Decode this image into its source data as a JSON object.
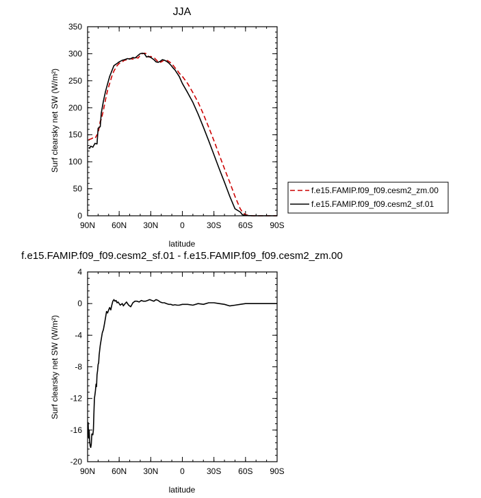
{
  "chart_data": [
    {
      "type": "line",
      "title": "JJA",
      "xlabel": "latitude",
      "ylabel": "Surf clearsky net SW (W/m²)",
      "xlim": [
        90,
        -90
      ],
      "ylim": [
        0,
        350
      ],
      "xticks": [
        90,
        60,
        30,
        0,
        -30,
        -60,
        -90
      ],
      "xtick_labels": [
        "90N",
        "60N",
        "30N",
        "0",
        "30S",
        "60S",
        "90S"
      ],
      "yticks": [
        0,
        50,
        100,
        150,
        200,
        250,
        300,
        350
      ],
      "ytick_labels": [
        "0",
        "50",
        "100",
        "150",
        "200",
        "250",
        "300",
        "350"
      ],
      "legend_position": "right",
      "series": [
        {
          "name": "f.e15.FAMIP.f09_f09.cesm2_zm.00",
          "color": "#cc0000",
          "dash": "dashed",
          "x": [
            89,
            87,
            85,
            83,
            81,
            80,
            78,
            77,
            75,
            73,
            71,
            69,
            67,
            65,
            62,
            60,
            57,
            55,
            52,
            50,
            47,
            45,
            42,
            40,
            38,
            36,
            34,
            32,
            30,
            27,
            25,
            23,
            21,
            19,
            17,
            15,
            13,
            11,
            9,
            7,
            5,
            3,
            0,
            -5,
            -10,
            -15,
            -20,
            -25,
            -30,
            -35,
            -40,
            -45,
            -50,
            -55,
            -57,
            -60,
            -62,
            -63,
            -65,
            -66,
            -68,
            -70,
            -75,
            -80,
            -85,
            -90
          ],
          "y": [
            141,
            142,
            144,
            143,
            150,
            152,
            175,
            178,
            195,
            215,
            232,
            245,
            258,
            268,
            278,
            282,
            285,
            288,
            289,
            291,
            290,
            293,
            292,
            297,
            300,
            301,
            300,
            294,
            295,
            293,
            289,
            285,
            284,
            286,
            289,
            288,
            286,
            283,
            279,
            274,
            270,
            264,
            258,
            245,
            228,
            210,
            188,
            164,
            139,
            113,
            87,
            62,
            36,
            13,
            7,
            2,
            1,
            0.5,
            0.3,
            0.2,
            0,
            0,
            0,
            0,
            0,
            0
          ]
        },
        {
          "name": "f.e15.FAMIP.f09_f09.cesm2_sf.01",
          "color": "#000000",
          "dash": "solid",
          "x": [
            89,
            88,
            87,
            85,
            83,
            81,
            80,
            78,
            77,
            75,
            73,
            71,
            69,
            67,
            65,
            62,
            60,
            57,
            55,
            52,
            50,
            47,
            45,
            42,
            40,
            38,
            36,
            34,
            32,
            30,
            27,
            25,
            23,
            21,
            19,
            17,
            15,
            13,
            11,
            9,
            7,
            5,
            3,
            0,
            -5,
            -10,
            -15,
            -20,
            -25,
            -30,
            -35,
            -40,
            -45,
            -50,
            -55,
            -57,
            -60,
            -62,
            -63,
            -65,
            -66,
            -68,
            -70,
            -75,
            -80,
            -85,
            -90
          ],
          "y": [
            126,
            125,
            129,
            127,
            134,
            133,
            162,
            165,
            190,
            212,
            230,
            244,
            258,
            268,
            278,
            282,
            285,
            288,
            289,
            291,
            290,
            293,
            292,
            297,
            300,
            301,
            300,
            294,
            295,
            293,
            289,
            285,
            284,
            286,
            289,
            288,
            286,
            283,
            279,
            274,
            270,
            264,
            258,
            245,
            228,
            210,
            188,
            164,
            139,
            113,
            87,
            62,
            36,
            13,
            7,
            2,
            1,
            0.5,
            0.3,
            0.2,
            0,
            0,
            0,
            0,
            0,
            0,
            0
          ]
        }
      ]
    },
    {
      "type": "line",
      "title": "f.e15.FAMIP.f09_f09.cesm2_sf.01 - f.e15.FAMIP.f09_f09.cesm2_zm.00",
      "xlabel": "latitude",
      "ylabel": "Surf clearsky net SW (W/m²)",
      "xlim": [
        90,
        -90
      ],
      "ylim": [
        -20,
        4
      ],
      "xticks": [
        90,
        60,
        30,
        0,
        -30,
        -60,
        -90
      ],
      "xtick_labels": [
        "90N",
        "60N",
        "30N",
        "0",
        "30S",
        "60S",
        "90S"
      ],
      "yticks": [
        4,
        0,
        -4,
        -8,
        -12,
        -16,
        -20
      ],
      "ytick_labels": [
        "4",
        "0",
        "-4",
        "-8",
        "-12",
        "-16",
        "-20"
      ],
      "series": [
        {
          "color": "#000000",
          "dash": "solid",
          "x": [
            89.5,
            89,
            88.5,
            88,
            87.5,
            87,
            86.5,
            86,
            85.5,
            85,
            84.5,
            84,
            83.5,
            83,
            82.5,
            82,
            81.5,
            81,
            80.5,
            80,
            79.5,
            79,
            78,
            77,
            76,
            75,
            74,
            73,
            72,
            71,
            70,
            69,
            68,
            67,
            66,
            65,
            64,
            63,
            62,
            61,
            60,
            59,
            58,
            57,
            56,
            55,
            53,
            51,
            49,
            47,
            45,
            43,
            41,
            39,
            37,
            35,
            33,
            31,
            29,
            27,
            25,
            23,
            21,
            19,
            17,
            15,
            13,
            11,
            9,
            7,
            5,
            3,
            0,
            -5,
            -10,
            -15,
            -20,
            -25,
            -30,
            -35,
            -40,
            -45,
            -50,
            -55,
            -60,
            -65,
            -70,
            -75,
            -80,
            -85,
            -90
          ],
          "y": [
            -15,
            -17,
            -16,
            -17.5,
            -18,
            -18.2,
            -17.8,
            -16.5,
            -16.5,
            -16.6,
            -16,
            -14,
            -12,
            -11.5,
            -11,
            -10.2,
            -10.5,
            -9,
            -8.5,
            -7.7,
            -7.5,
            -6.5,
            -5.3,
            -4.5,
            -3.7,
            -3.3,
            -2.6,
            -1.8,
            -1,
            -1.2,
            -0.8,
            -0.5,
            -0.8,
            -0.2,
            0.3,
            0.5,
            0.3,
            0.4,
            0.1,
            0.2,
            0,
            -0.2,
            -0.1,
            0,
            -0.3,
            -0.1,
            0.2,
            -0.2,
            -0.4,
            0.1,
            0.3,
            0.3,
            0.2,
            0.4,
            0.3,
            0.3,
            0.4,
            0.5,
            0.4,
            0.3,
            0.5,
            0.4,
            0.2,
            0.1,
            0.1,
            0,
            -0.1,
            -0.1,
            -0.2,
            -0.15,
            -0.2,
            -0.2,
            -0.1,
            -0.1,
            -0.2,
            0,
            -0.1,
            0.1,
            0.1,
            0,
            -0.1,
            -0.3,
            -0.2,
            -0.1,
            0,
            0,
            0,
            0,
            0,
            0,
            0
          ]
        }
      ]
    }
  ]
}
